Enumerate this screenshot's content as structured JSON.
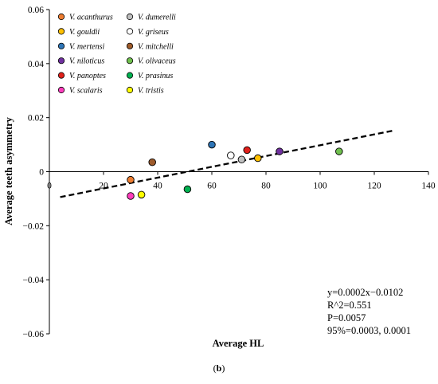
{
  "chart_data": {
    "type": "scatter",
    "xlabel": "Average HL",
    "ylabel": "Average teeth asymmetry",
    "xlim": [
      0,
      140
    ],
    "ylim": [
      -0.06,
      0.06
    ],
    "x_ticks": [
      0,
      20,
      40,
      60,
      80,
      100,
      120,
      140
    ],
    "y_ticks": [
      -0.06,
      -0.04,
      -0.02,
      0,
      0.02,
      0.04,
      0.06
    ],
    "x_tick_labels": [
      "0",
      "20",
      "40",
      "60",
      "80",
      "100",
      "120",
      "140"
    ],
    "y_tick_labels": [
      "−0.06",
      "−0.04",
      "−0.02",
      "0",
      "0.02",
      "0.04",
      "0.06"
    ],
    "grid": false,
    "legend_position": "top-left",
    "series": [
      {
        "name": "V. acanthurus",
        "color": "#ed7d31",
        "x": 30,
        "y": -0.003
      },
      {
        "name": "V. dumerelli",
        "color": "#bfbfbf",
        "x": 71,
        "y": 0.0045
      },
      {
        "name": "V. gouldii",
        "color": "#ffc000",
        "x": 77,
        "y": 0.005
      },
      {
        "name": "V. griseus",
        "color": "#ffffff",
        "x": 67,
        "y": 0.006
      },
      {
        "name": "V. mertensi",
        "color": "#2e75b6",
        "x": 60,
        "y": 0.01
      },
      {
        "name": "V. mitchelli",
        "color": "#9e5b2b",
        "x": 38,
        "y": 0.0035
      },
      {
        "name": "V. niloticus",
        "color": "#7030a0",
        "x": 85,
        "y": 0.0075
      },
      {
        "name": "V. olivaceus",
        "color": "#70c04e",
        "x": 107,
        "y": 0.0075
      },
      {
        "name": "V. panoptes",
        "color": "#e0201b",
        "x": 73,
        "y": 0.008
      },
      {
        "name": "V. prasinus",
        "color": "#00b050",
        "x": 51,
        "y": -0.0065
      },
      {
        "name": "V. scalaris",
        "color": "#ff3dbd",
        "x": 30,
        "y": -0.009
      },
      {
        "name": "V. tristis",
        "color": "#ffff00",
        "x": 34,
        "y": -0.0085
      }
    ],
    "trendline": {
      "slope": 0.0002,
      "intercept": -0.0102,
      "x_start": 4,
      "x_end": 127,
      "style": "dashed",
      "color": "#000000"
    },
    "annotations": [
      "y=0.0002x−0.0102",
      "R^2=0.551",
      "P=0.0057",
      "95%=0.0003, 0.0001"
    ],
    "caption": "(b)"
  }
}
